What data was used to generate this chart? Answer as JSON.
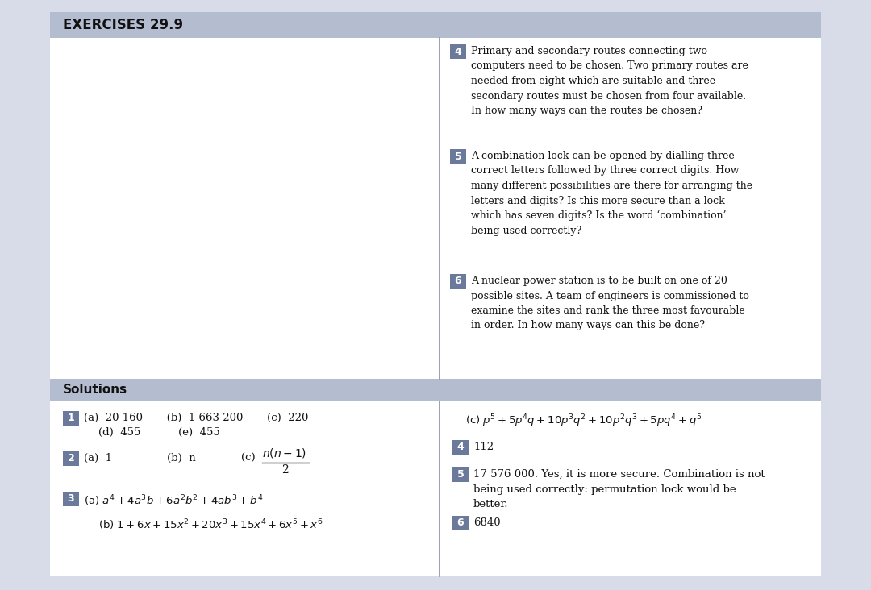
{
  "title": "EXERCISES 29.9",
  "title_bg": "#b4bccf",
  "solutions_bg": "#b4bccf",
  "solutions_label": "Solutions",
  "page_bg": "#d8dce8",
  "content_bg": "#ffffff",
  "number_box_color": "#6b7a9b",
  "number_box_text_color": "#ffffff",
  "divider_color": "#8890aa",
  "q4_text": "Primary and secondary routes connecting two\ncomputers need to be chosen. Two primary routes are\nneeded from eight which are suitable and three\nsecondary routes must be chosen from four available.\nIn how many ways can the routes be chosen?",
  "q5_text": "A combination lock can be opened by dialling three\ncorrect letters followed by three correct digits. How\nmany different possibilities are there for arranging the\nletters and digits? Is this more secure than a lock\nwhich has seven digits? Is the word ‘combination’\nbeing used correctly?",
  "q6_text": "A nuclear power station is to be built on one of 20\npossible sites. A team of engineers is commissioned to\nexamine the sites and rank the three most favourable\nin order. In how many ways can this be done?",
  "sol1_line1": "(a)  20 160       (b)  1 663 200       (c)  220",
  "sol1_line2": "(d)  455           (e)  455",
  "sol2_line1": "(a)  1                (b)  n",
  "sol2_frac_label": "(c)",
  "sol2_frac_num": "n(n − 1)",
  "sol2_frac_den": "2",
  "sol3a": "(a) $a^4 + 4a^3b + 6a^2b^2 + 4ab^3 + b^4$",
  "sol3b": "(b) $1 + 6x + 15x^2 + 20x^3 + 15x^4 + 6x^5 + x^6$",
  "sol1c": "(c) $p^5 + 5p^4q + 10p^3q^2 + 10p^2q^3 + 5pq^4 + q^5$",
  "sol4": "112",
  "sol5": "17 576 000. Yes, it is more secure. Combination is not\nbeing used correctly: permutation lock would be\nbetter.",
  "sol6": "6840"
}
